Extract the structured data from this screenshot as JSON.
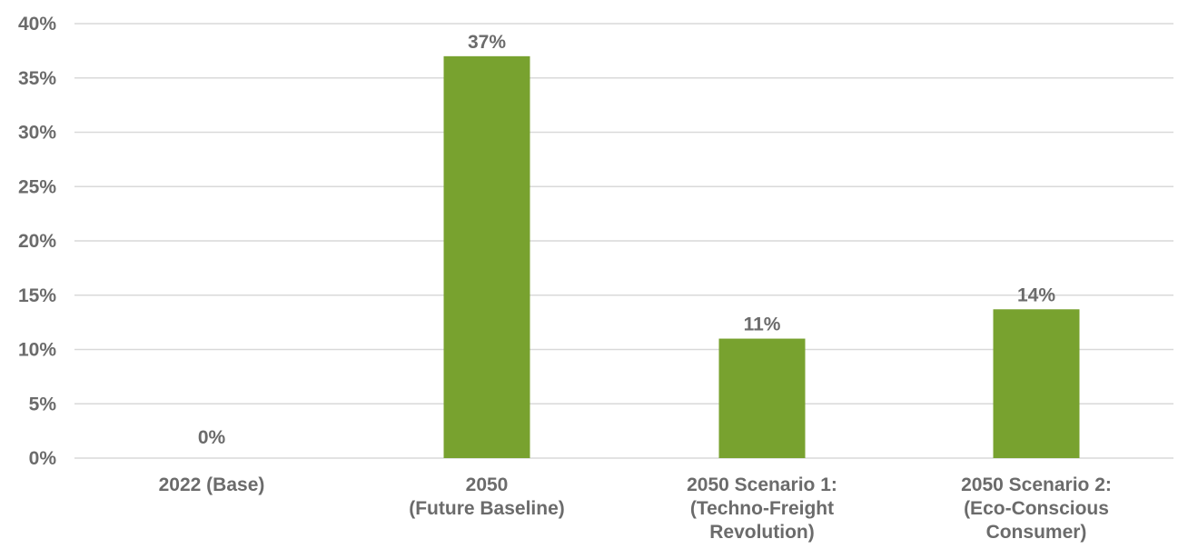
{
  "chart_data": {
    "type": "bar",
    "categories": [
      [
        "2022 (Base)"
      ],
      [
        "2050",
        "(Future Baseline)"
      ],
      [
        "2050 Scenario 1:",
        "(Techno-Freight",
        "Revolution)"
      ],
      [
        "2050 Scenario 2:",
        "(Eco-Conscious",
        "Consumer)"
      ]
    ],
    "values": [
      0,
      37,
      11,
      13.7
    ],
    "data_labels": [
      "0%",
      "37%",
      "11%",
      "14%"
    ],
    "y_ticks": [
      "0%",
      "5%",
      "10%",
      "15%",
      "20%",
      "25%",
      "30%",
      "35%",
      "40%"
    ],
    "ylim": [
      0,
      40
    ],
    "y_unit": "%",
    "title": "",
    "xlabel": "",
    "ylabel": "",
    "grid": true,
    "legend": "none",
    "colors": {
      "bar": "#78a22f",
      "grid": "#d9d9d9",
      "text": "#6b6b6b"
    }
  }
}
